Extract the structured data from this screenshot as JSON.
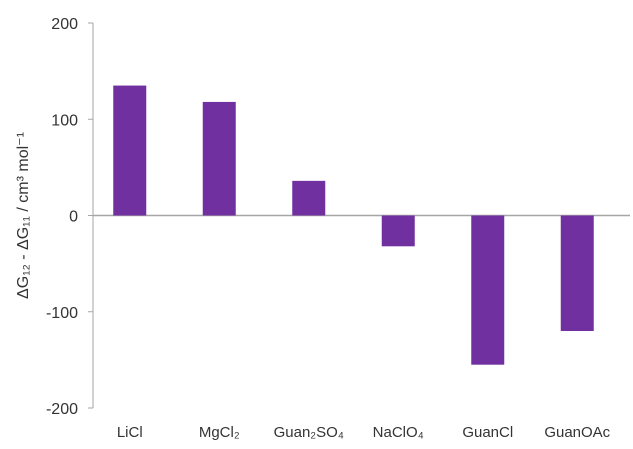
{
  "chart_data": {
    "type": "bar",
    "categories": [
      "LiCl",
      "MgCl₂",
      "Guan₂SO₄",
      "NaClO₄",
      "GuanCl",
      "GuanOAc"
    ],
    "values": [
      135,
      118,
      36,
      -32,
      -155,
      -120
    ],
    "ylabel": "ΔG₁₂ - ΔG₁₁ / cm³ mol⁻¹",
    "ylim": [
      -200,
      200
    ],
    "yticks": [
      "200",
      "100",
      "0",
      "-100",
      "-200"
    ],
    "grid": false,
    "legend": "none",
    "bar_color": "#7030a0",
    "axis_color": "#a6a6a6"
  }
}
